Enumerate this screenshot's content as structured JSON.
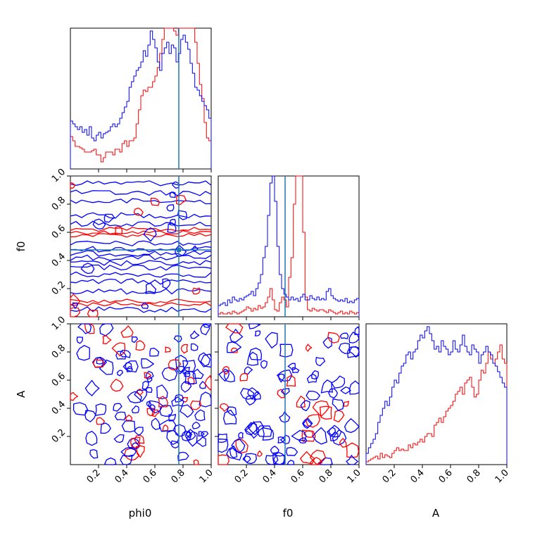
{
  "chart_data": {
    "type": "corner",
    "parameters": [
      "phi0",
      "f0",
      "A"
    ],
    "range": [
      0,
      1
    ],
    "tick_labels": [
      "0.2",
      "0.4",
      "0.6",
      "0.8",
      "1.0"
    ],
    "truth": {
      "phi0": 0.77,
      "f0": 0.475
    },
    "colors": {
      "series_red": "#ff0000",
      "series_blue": "#0000ff",
      "truth": "#1f77b4"
    },
    "series": [
      {
        "color": "#ff0000",
        "histograms": {
          "phi0": [
            0.23,
            0.2,
            0.16,
            0.16,
            0.15,
            0.14,
            0.12,
            0.12,
            0.12,
            0.13,
            0.14,
            0.1,
            0.1,
            0.05,
            0.08,
            0.12,
            0.12,
            0.12,
            0.1,
            0.14,
            0.14,
            0.12,
            0.18,
            0.2,
            0.16,
            0.2,
            0.2,
            0.22,
            0.32,
            0.42,
            0.52,
            0.56,
            0.55,
            0.58,
            0.58,
            0.62,
            0.66,
            0.72,
            0.82,
            0.92,
            1.15,
            1.2,
            1.05,
            1.0,
            0.98,
            0.95,
            1.05,
            1.03,
            1.02,
            1.1,
            1.35,
            1.28,
            1.05,
            0.9,
            0.75,
            0.6,
            0.5,
            0.33,
            0.22,
            0.2
          ],
          "f0": [
            0.02,
            0.03,
            0.02,
            0.02,
            0.03,
            0.02,
            0.04,
            0.03,
            0.02,
            0.03,
            0.04,
            0.05,
            0.07,
            0.06,
            0.04,
            0.06,
            0.05,
            0.08,
            0.06,
            0.07,
            0.1,
            0.14,
            0.2,
            0.12,
            0.05,
            0.04,
            0.1,
            0.14,
            0.12,
            0.07,
            0.28,
            0.42,
            0.8,
            1.2,
            1.5,
            1.15,
            0.6,
            0.14,
            0.05,
            0.04,
            0.06,
            0.05,
            0.04,
            0.05,
            0.05,
            0.04,
            0.03,
            0.05,
            0.04,
            0.03,
            0.02,
            0.03,
            0.04,
            0.02,
            0.03,
            0.02,
            0.04,
            0.03,
            0.02,
            0.03
          ],
          "A": [
            0.02,
            0.03,
            0.04,
            0.05,
            0.06,
            0.04,
            0.08,
            0.05,
            0.07,
            0.06,
            0.05,
            0.08,
            0.1,
            0.12,
            0.1,
            0.11,
            0.1,
            0.1,
            0.14,
            0.12,
            0.15,
            0.14,
            0.16,
            0.18,
            0.16,
            0.2,
            0.22,
            0.22,
            0.2,
            0.28,
            0.3,
            0.33,
            0.3,
            0.34,
            0.38,
            0.4,
            0.42,
            0.45,
            0.5,
            0.52,
            0.55,
            0.5,
            0.58,
            0.6,
            0.62,
            0.55,
            0.48,
            0.5,
            0.6,
            0.67,
            0.65,
            0.72,
            0.8,
            0.75,
            0.72,
            0.75,
            0.8,
            0.85,
            0.75,
            0.72
          ]
        }
      },
      {
        "color": "#0000ff",
        "histograms": {
          "phi0": [
            0.34,
            0.32,
            0.3,
            0.28,
            0.3,
            0.26,
            0.28,
            0.24,
            0.3,
            0.22,
            0.2,
            0.24,
            0.26,
            0.22,
            0.25,
            0.26,
            0.27,
            0.3,
            0.32,
            0.3,
            0.32,
            0.36,
            0.4,
            0.44,
            0.48,
            0.58,
            0.62,
            0.66,
            0.7,
            0.72,
            0.76,
            0.84,
            0.8,
            0.88,
            0.98,
            0.92,
            0.86,
            0.76,
            0.7,
            0.82,
            0.86,
            0.9,
            0.82,
            0.88,
            0.86,
            0.76,
            0.82,
            0.92,
            0.95,
            0.9,
            0.85,
            0.75,
            0.68,
            0.58,
            0.56,
            0.52,
            0.48,
            0.45,
            0.42,
            0.36
          ],
          "f0": [
            0.08,
            0.09,
            0.1,
            0.08,
            0.12,
            0.1,
            0.14,
            0.12,
            0.11,
            0.13,
            0.12,
            0.14,
            0.15,
            0.16,
            0.18,
            0.15,
            0.2,
            0.24,
            0.3,
            0.42,
            0.5,
            0.72,
            0.95,
            1.06,
            0.82,
            0.5,
            0.3,
            0.2,
            0.16,
            0.14,
            0.12,
            0.14,
            0.12,
            0.13,
            0.11,
            0.14,
            0.16,
            0.12,
            0.12,
            0.15,
            0.13,
            0.12,
            0.14,
            0.12,
            0.13,
            0.12,
            0.18,
            0.2,
            0.15,
            0.13,
            0.12,
            0.11,
            0.12,
            0.11,
            0.13,
            0.1,
            0.11,
            0.1,
            0.12,
            0.13
          ],
          "A": [
            0.08,
            0.12,
            0.15,
            0.18,
            0.22,
            0.3,
            0.35,
            0.4,
            0.45,
            0.42,
            0.48,
            0.55,
            0.6,
            0.58,
            0.65,
            0.7,
            0.72,
            0.78,
            0.8,
            0.75,
            0.8,
            0.82,
            0.88,
            0.92,
            0.9,
            0.95,
            0.98,
            0.93,
            0.88,
            0.82,
            0.84,
            0.8,
            0.88,
            0.84,
            0.82,
            0.78,
            0.8,
            0.88,
            0.82,
            0.8,
            0.85,
            0.92,
            0.84,
            0.8,
            0.78,
            0.85,
            0.82,
            0.8,
            0.72,
            0.78,
            0.8,
            0.84,
            0.8,
            0.78,
            0.72,
            0.7,
            0.66,
            0.62,
            0.58,
            0.55
          ]
        }
      }
    ]
  }
}
